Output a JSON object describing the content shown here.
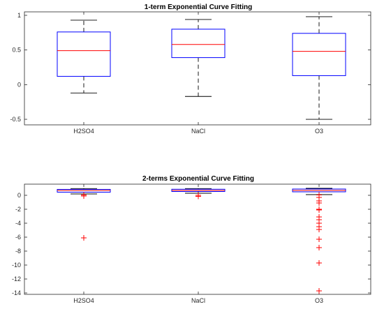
{
  "colors": {
    "box": "#0000ff",
    "median": "#ff0000",
    "whisker": "#000000",
    "outlier": "#ff0000",
    "axis": "#262626"
  },
  "chart_data": [
    {
      "type": "box",
      "title": "1-term Exponential Curve Fitting",
      "xlabel": "",
      "ylabel": "",
      "categories": [
        "H2SO4",
        "NaCl",
        "O3"
      ],
      "ylim": [
        -0.58,
        1.05
      ],
      "yticks": [
        -0.5,
        0,
        0.5,
        1
      ],
      "ytick_labels": [
        "-0.5",
        "0",
        "0.5",
        "1"
      ],
      "grid": false,
      "boxes": [
        {
          "category": "H2SO4",
          "whisker_low": -0.12,
          "q1": 0.12,
          "median": 0.49,
          "q3": 0.76,
          "whisker_high": 0.93,
          "outliers": []
        },
        {
          "category": "NaCl",
          "whisker_low": -0.17,
          "q1": 0.39,
          "median": 0.58,
          "q3": 0.8,
          "whisker_high": 0.94,
          "outliers": []
        },
        {
          "category": "O3",
          "whisker_low": -0.5,
          "q1": 0.13,
          "median": 0.48,
          "q3": 0.74,
          "whisker_high": 0.98,
          "outliers": []
        }
      ]
    },
    {
      "type": "box",
      "title": "2-terms Exponential Curve Fitting",
      "xlabel": "",
      "ylabel": "",
      "categories": [
        "H2SO4",
        "NaCl",
        "O3"
      ],
      "ylim": [
        -14.2,
        1.6
      ],
      "yticks": [
        -14,
        -12,
        -10,
        -8,
        -6,
        -4,
        -2,
        0
      ],
      "ytick_labels": [
        "-14",
        "-12",
        "-10",
        "-8",
        "-6",
        "-4",
        "-2",
        "0"
      ],
      "grid": false,
      "boxes": [
        {
          "category": "H2SO4",
          "whisker_low": 0.2,
          "q1": 0.45,
          "median": 0.7,
          "q3": 0.85,
          "whisker_high": 0.97,
          "outliers": [
            0.05,
            -0.1,
            -6.1
          ]
        },
        {
          "category": "NaCl",
          "whisker_low": 0.3,
          "q1": 0.55,
          "median": 0.7,
          "q3": 0.87,
          "whisker_high": 0.97,
          "outliers": [
            0.0,
            -0.15
          ]
        },
        {
          "category": "O3",
          "whisker_low": 0.1,
          "q1": 0.5,
          "median": 0.7,
          "q3": 0.9,
          "whisker_high": 1.0,
          "outliers": [
            0.05,
            -0.3,
            -0.8,
            -1.1,
            -2.0,
            -2.1,
            -3.1,
            -3.5,
            -4.0,
            -4.5,
            -4.9,
            -6.3,
            -7.5,
            -9.7,
            -13.7
          ]
        }
      ]
    }
  ]
}
